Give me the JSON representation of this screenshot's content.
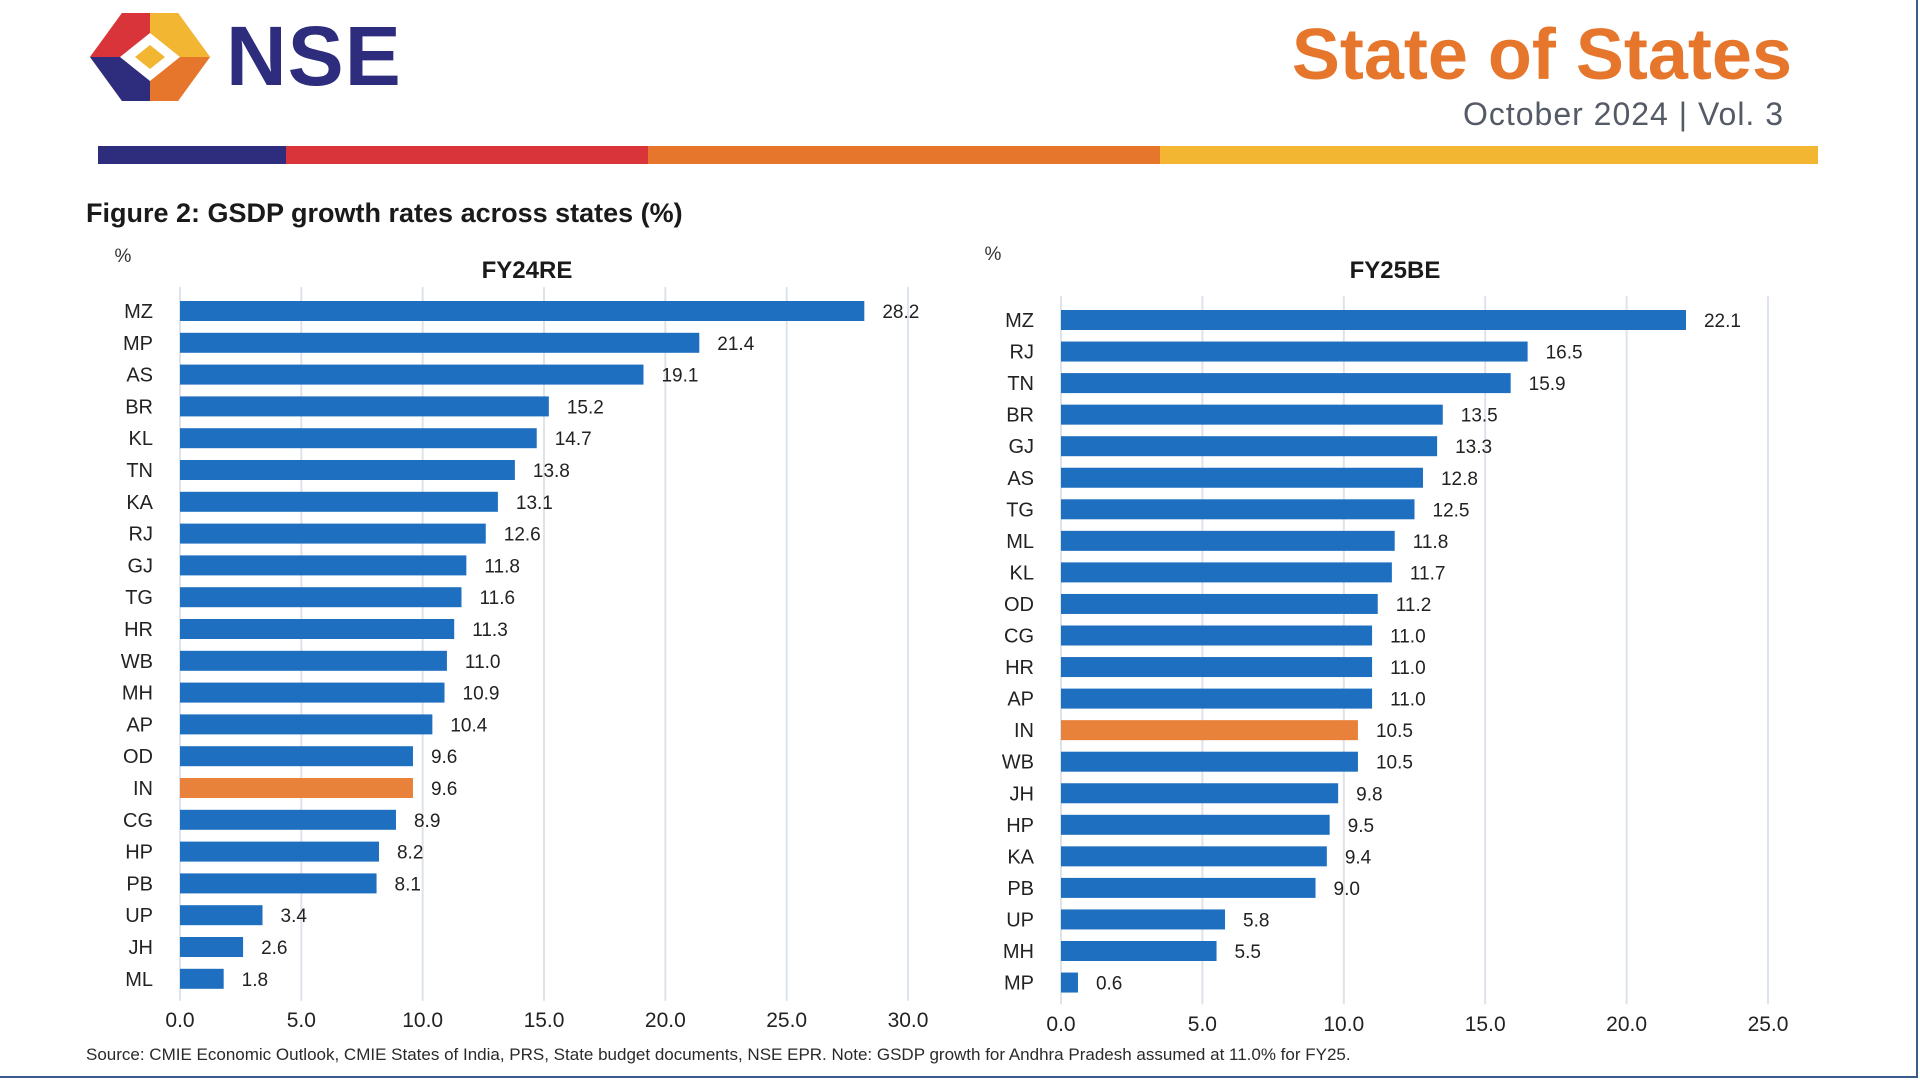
{
  "header": {
    "logo_text": "NSE",
    "report_title": "State of States",
    "report_subtitle": "October 2024 | Vol. 3"
  },
  "colors": {
    "bar": "#1f6fc0",
    "highlight": "#e8823a",
    "band": [
      "#2e2c7c",
      "#d9343a",
      "#e5762c",
      "#f2b632"
    ],
    "gridline": "#dde3ea"
  },
  "figure_title": "Figure 2: GSDP growth rates across states (%)",
  "source_note": "Source: CMIE Economic Outlook, CMIE States of India, PRS, State budget documents, NSE EPR. Note: GSDP growth for Andhra Pradesh assumed at 11.0% for FY25.",
  "chart_data": [
    {
      "type": "bar",
      "orientation": "horizontal",
      "title": "FY24RE",
      "unit_label": "%",
      "xlim": [
        0,
        30
      ],
      "xticks": [
        "0.0",
        "5.0",
        "10.0",
        "15.0",
        "20.0",
        "25.0",
        "30.0"
      ],
      "highlight_category": "IN",
      "categories": [
        "MZ",
        "MP",
        "AS",
        "BR",
        "KL",
        "TN",
        "KA",
        "RJ",
        "GJ",
        "TG",
        "HR",
        "WB",
        "MH",
        "AP",
        "OD",
        "IN",
        "CG",
        "HP",
        "PB",
        "UP",
        "JH",
        "ML"
      ],
      "values": [
        28.2,
        21.4,
        19.1,
        15.2,
        14.7,
        13.8,
        13.1,
        12.6,
        11.8,
        11.6,
        11.3,
        11.0,
        10.9,
        10.4,
        9.6,
        9.6,
        8.9,
        8.2,
        8.1,
        3.4,
        2.6,
        1.8
      ],
      "value_labels": [
        "28.2",
        "21.4",
        "19.1",
        "15.2",
        "14.7",
        "13.8",
        "13.1",
        "12.6",
        "11.8",
        "11.6",
        "11.3",
        "11.0",
        "10.9",
        "10.4",
        "9.6",
        "9.6",
        "8.9",
        "8.2",
        "8.1",
        "3.4",
        "2.6",
        "1.8"
      ]
    },
    {
      "type": "bar",
      "orientation": "horizontal",
      "title": "FY25BE",
      "unit_label": "%",
      "xlim": [
        0,
        25
      ],
      "xticks": [
        "0.0",
        "5.0",
        "10.0",
        "15.0",
        "20.0",
        "25.0"
      ],
      "highlight_category": "IN",
      "categories": [
        "MZ",
        "RJ",
        "TN",
        "BR",
        "GJ",
        "AS",
        "TG",
        "ML",
        "KL",
        "OD",
        "CG",
        "HR",
        "AP",
        "IN",
        "WB",
        "JH",
        "HP",
        "KA",
        "PB",
        "UP",
        "MH",
        "MP"
      ],
      "values": [
        22.1,
        16.5,
        15.9,
        13.5,
        13.3,
        12.8,
        12.5,
        11.8,
        11.7,
        11.2,
        11.0,
        11.0,
        11.0,
        10.5,
        10.5,
        9.8,
        9.5,
        9.4,
        9.0,
        5.8,
        5.5,
        0.6
      ],
      "value_labels": [
        "22.1",
        "16.5",
        "15.9",
        "13.5",
        "13.3",
        "12.8",
        "12.5",
        "11.8",
        "11.7",
        "11.2",
        "11.0",
        "11.0",
        "11.0",
        "10.5",
        "10.5",
        "9.8",
        "9.5",
        "9.4",
        "9.0",
        "5.8",
        "5.5",
        "0.6"
      ]
    }
  ]
}
